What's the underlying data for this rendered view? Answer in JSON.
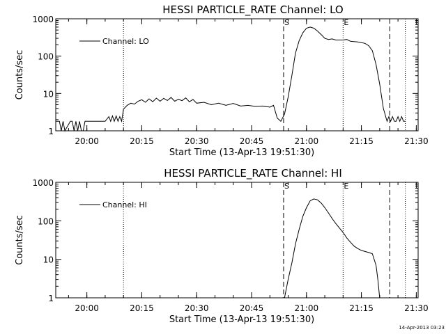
{
  "footer_timestamp": "14-Apr-2013 03:23",
  "chart_data": [
    {
      "type": "line",
      "title": "HESSI PARTICLE_RATE Channel: LO",
      "xlabel": "Start Time (13-Apr-13 19:51:30)",
      "ylabel": "Counts/sec",
      "legend": "Channel: LO",
      "legend_position": "top-left",
      "y_scale": "log",
      "ylim": [
        1,
        1000
      ],
      "xlim": [
        "19:51:30",
        "21:30:30"
      ],
      "x_ticks": [
        "20:00",
        "20:15",
        "20:30",
        "20:45",
        "21:00",
        "21:15",
        "21:30"
      ],
      "y_ticks": [
        "1",
        "10",
        "100",
        "1000"
      ],
      "markers": [
        {
          "time": "20:10:00",
          "style": "dotted",
          "label": ""
        },
        {
          "time": "20:53:45",
          "style": "dashed",
          "label": "S"
        },
        {
          "time": "21:10:00",
          "style": "dotted",
          "label": "E"
        },
        {
          "time": "21:22:45",
          "style": "dashed",
          "label": ""
        },
        {
          "time": "21:27:00",
          "style": "dotted",
          "label": ""
        }
      ],
      "series": [
        {
          "x": [
            "19:51:30",
            "19:52:30",
            "19:53:00",
            "19:53:30",
            "19:54:00",
            "19:55:30",
            "19:56:00",
            "19:56:30",
            "19:57:00",
            "19:57:30",
            "19:58:00",
            "19:58:30",
            "19:59:00",
            "19:59:30",
            "20:00:00",
            "20:01:00",
            "20:03:00",
            "20:05:00",
            "20:06:00",
            "20:06:30",
            "20:07:00",
            "20:07:30",
            "20:08:00",
            "20:08:30",
            "20:09:00",
            "20:09:30",
            "20:10:00",
            "20:11:00",
            "20:12:00",
            "20:13:00",
            "20:14:00",
            "20:15:00",
            "20:16:00",
            "20:17:00",
            "20:18:00",
            "20:19:00",
            "20:20:00",
            "20:21:00",
            "20:22:00",
            "20:23:00",
            "20:24:00",
            "20:25:00",
            "20:26:00",
            "20:27:00",
            "20:28:00",
            "20:29:00",
            "20:30:00",
            "20:32:00",
            "20:34:00",
            "20:36:00",
            "20:38:00",
            "20:40:00",
            "20:42:00",
            "20:44:00",
            "20:46:00",
            "20:48:00",
            "20:50:00",
            "20:51:00",
            "20:52:00",
            "20:53:00",
            "20:54:00",
            "20:55:00",
            "20:56:00",
            "20:57:00",
            "20:58:00",
            "20:59:00",
            "21:00:00",
            "21:01:00",
            "21:02:00",
            "21:03:00",
            "21:04:00",
            "21:05:00",
            "21:06:00",
            "21:07:00",
            "21:08:00",
            "21:10:00",
            "21:11:00",
            "21:12:00",
            "21:14:00",
            "21:16:00",
            "21:17:00",
            "21:18:00",
            "21:19:00",
            "21:20:00",
            "21:21:00",
            "21:22:00",
            "21:22:30",
            "21:23:00",
            "21:23:30",
            "21:24:00",
            "21:24:30",
            "21:25:00",
            "21:25:30",
            "21:26:00",
            "21:26:30",
            "21:27:00"
          ],
          "y": [
            1.8,
            1.8,
            1,
            1.8,
            1,
            1.8,
            1.8,
            1,
            1.8,
            1,
            1.8,
            1,
            1,
            1.8,
            1.8,
            1.8,
            1.8,
            1.8,
            2.4,
            1.8,
            2.5,
            1.8,
            2.5,
            1.8,
            2.4,
            1.8,
            3.8,
            4.8,
            5.5,
            5.2,
            6.2,
            6.8,
            5.8,
            7.2,
            6.0,
            7.5,
            6.2,
            7.4,
            6.5,
            7.8,
            6.2,
            7.0,
            6.4,
            7.6,
            6.0,
            6.9,
            5.5,
            5.8,
            5.0,
            5.5,
            4.8,
            5.4,
            4.6,
            4.8,
            4.5,
            4.6,
            4.3,
            4.8,
            2.2,
            1.8,
            2.8,
            8,
            30,
            120,
            260,
            420,
            560,
            600,
            560,
            470,
            380,
            300,
            280,
            290,
            270,
            270,
            280,
            250,
            240,
            220,
            190,
            140,
            60,
            18,
            4,
            1.8,
            2.4,
            1.8,
            2.4,
            1.8,
            1.8,
            2.4,
            1.8,
            2.4,
            1.8,
            1.8
          ]
        }
      ]
    },
    {
      "type": "line",
      "title": "HESSI PARTICLE_RATE Channel: HI",
      "xlabel": "Start Time (13-Apr-13 19:51:30)",
      "ylabel": "Counts/sec",
      "legend": "Channel: HI",
      "legend_position": "top-left",
      "y_scale": "log",
      "ylim": [
        1,
        1000
      ],
      "xlim": [
        "19:51:30",
        "21:30:30"
      ],
      "x_ticks": [
        "20:00",
        "20:15",
        "20:30",
        "20:45",
        "21:00",
        "21:15",
        "21:30"
      ],
      "y_ticks": [
        "1",
        "10",
        "100",
        "1000"
      ],
      "markers": [
        {
          "time": "20:10:00",
          "style": "dotted",
          "label": ""
        },
        {
          "time": "20:53:45",
          "style": "dashed",
          "label": "S"
        },
        {
          "time": "21:10:00",
          "style": "dotted",
          "label": "E"
        },
        {
          "time": "21:22:45",
          "style": "dashed",
          "label": ""
        },
        {
          "time": "21:27:00",
          "style": "dotted",
          "label": ""
        }
      ],
      "series": [
        {
          "x": [
            "20:54:00",
            "20:55:00",
            "20:56:00",
            "20:57:00",
            "20:58:00",
            "20:59:00",
            "21:00:00",
            "21:01:00",
            "21:02:00",
            "21:03:00",
            "21:04:00",
            "21:05:00",
            "21:06:00",
            "21:07:00",
            "21:08:00",
            "21:09:00",
            "21:10:00",
            "21:11:00",
            "21:12:00",
            "21:13:00",
            "21:14:00",
            "21:15:00",
            "21:16:00",
            "21:17:00",
            "21:18:00",
            "21:19:00",
            "21:19:30",
            "21:20:00"
          ],
          "y": [
            1,
            3,
            8,
            25,
            60,
            130,
            220,
            330,
            370,
            350,
            290,
            220,
            160,
            115,
            85,
            65,
            50,
            36,
            28,
            22,
            19,
            17,
            16,
            15,
            14,
            7,
            3,
            1
          ]
        }
      ]
    }
  ]
}
